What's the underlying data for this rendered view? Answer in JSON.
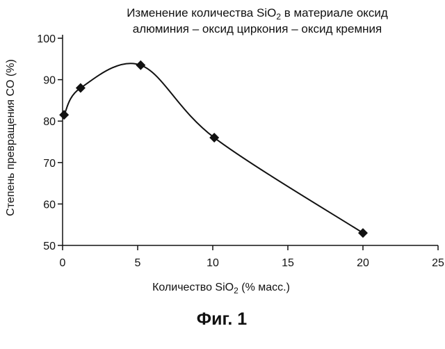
{
  "chart_data": {
    "type": "line",
    "title_line1_prefix": "Изменение количества SiO",
    "title_line1_sub": "2",
    "title_line1_suffix": " в материале оксид",
    "title_line2": "алюминия – оксид циркония – оксид кремния",
    "xlabel_prefix": "Количество SiO",
    "xlabel_sub": "2",
    "xlabel_suffix": " (% масс.)",
    "ylabel": "Степень превращения CO (%)",
    "xlim": [
      0,
      25
    ],
    "ylim": [
      50,
      100
    ],
    "xticks": [
      0,
      5,
      10,
      15,
      20,
      25
    ],
    "yticks": [
      50,
      60,
      70,
      80,
      90,
      100
    ],
    "grid": false,
    "smooth": true,
    "marker": "diamond",
    "series": [
      {
        "x": [
          0.1,
          1.2,
          5.2,
          10.1,
          20.0
        ],
        "y": [
          81.5,
          88.0,
          93.5,
          76.0,
          53.0
        ]
      }
    ],
    "line_color": "#111111"
  },
  "figure_caption": "Фиг. 1"
}
